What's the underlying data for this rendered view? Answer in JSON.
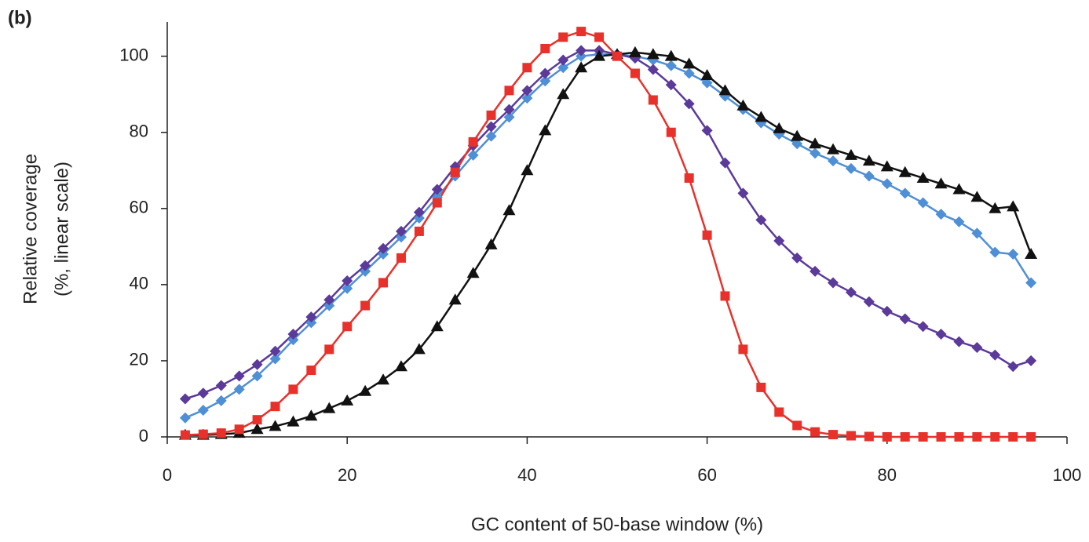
{
  "chart_data": {
    "type": "line",
    "panel_label": "(b)",
    "xlabel": "GC content of 50-base window (%)",
    "ylabel": [
      "Relative coverage",
      "(%, linear scale)"
    ],
    "x": [
      2,
      4,
      6,
      8,
      10,
      12,
      14,
      16,
      18,
      20,
      22,
      24,
      26,
      28,
      30,
      32,
      34,
      36,
      38,
      40,
      42,
      44,
      46,
      48,
      50,
      52,
      54,
      56,
      58,
      60,
      62,
      64,
      66,
      68,
      70,
      72,
      74,
      76,
      78,
      80,
      82,
      84,
      86,
      88,
      90,
      92,
      94,
      96
    ],
    "xlim": [
      0,
      100
    ],
    "xticks": [
      0,
      20,
      40,
      60,
      80,
      100
    ],
    "ylim": [
      0,
      109
    ],
    "yticks": [
      0,
      20,
      40,
      60,
      80,
      100
    ],
    "series": [
      {
        "color": "#4f8fd6",
        "marker": "diamond",
        "values": [
          5,
          7,
          9.5,
          12.5,
          16,
          20.5,
          25.5,
          30,
          34.5,
          39,
          43.5,
          48,
          52.5,
          57.5,
          63,
          68.5,
          74,
          79,
          84,
          89,
          93.5,
          97,
          100,
          100.5,
          100.5,
          100,
          99,
          97.5,
          95.5,
          93,
          89.5,
          86,
          82.5,
          79.5,
          77,
          74.5,
          72.5,
          70.5,
          68.5,
          66.5,
          64,
          61.5,
          58.5,
          56.5,
          53.5,
          48.5,
          48,
          40.5
        ]
      },
      {
        "color": "#5b3a9a",
        "marker": "diamond",
        "values": [
          10,
          11.5,
          13.5,
          16,
          19,
          22.5,
          27,
          31.5,
          36,
          41,
          45,
          49.5,
          54,
          59,
          65,
          71,
          76.5,
          81.5,
          86,
          91,
          95.5,
          99,
          101.5,
          101.5,
          100.5,
          99.5,
          96.5,
          92.5,
          87.5,
          80.5,
          72,
          64,
          57,
          51.5,
          47,
          43.5,
          40.5,
          38,
          35.5,
          33,
          31,
          29,
          27,
          25,
          23.5,
          21.5,
          18.5,
          20
        ]
      },
      {
        "color": "#111111",
        "marker": "triangle",
        "values": [
          0.5,
          0.5,
          0.7,
          1,
          2,
          2.8,
          4,
          5.5,
          7.5,
          9.5,
          12,
          15,
          18.5,
          23,
          29,
          36,
          43,
          50.5,
          59.5,
          70,
          80.5,
          90,
          97,
          100,
          100.5,
          101,
          100.5,
          100,
          98,
          95,
          91,
          87,
          84,
          81,
          79,
          77,
          75.5,
          74,
          72.5,
          71,
          69.5,
          68,
          66.5,
          65,
          63,
          60,
          60.5,
          48
        ]
      },
      {
        "color": "#e8312b",
        "marker": "square",
        "values": [
          0.5,
          0.7,
          1,
          2,
          4.5,
          8,
          12.5,
          17.5,
          23,
          29,
          34.5,
          40.5,
          47,
          54,
          61.5,
          69.5,
          77.5,
          84.5,
          91,
          97,
          102,
          105,
          106.5,
          105,
          100,
          95.5,
          88.5,
          80,
          68,
          53,
          37,
          23,
          13,
          6.5,
          3,
          1.3,
          0.6,
          0.3,
          0.1,
          0,
          0,
          0,
          0,
          0,
          0,
          0,
          0,
          0
        ]
      }
    ]
  }
}
